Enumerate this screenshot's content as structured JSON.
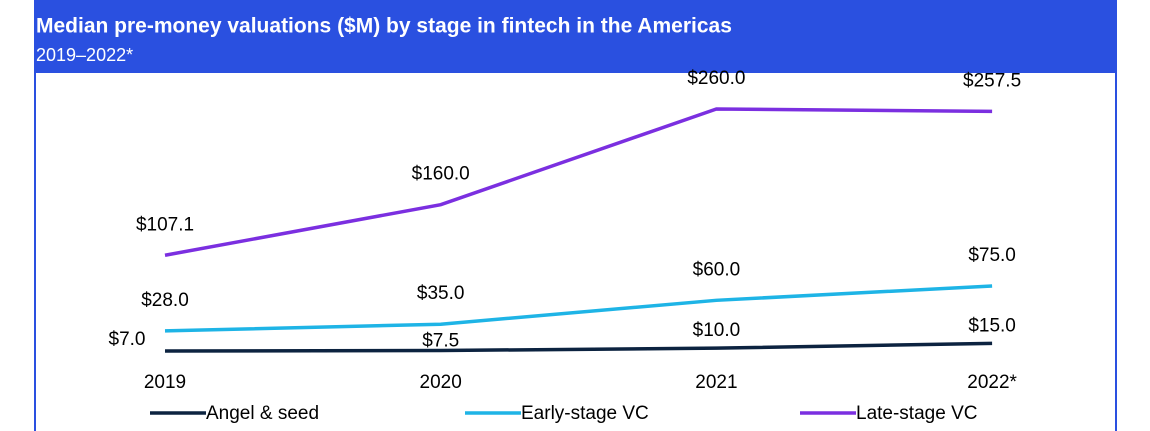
{
  "chart_data": {
    "type": "line",
    "title": "Median pre-money valuations ($M) by stage in fintech in the Americas",
    "subtitle": "2019–2022*",
    "categories": [
      "2019",
      "2020",
      "2021",
      "2022*"
    ],
    "series": [
      {
        "name": "Angel & seed",
        "color": "#0c2340",
        "values": [
          7.0,
          7.5,
          10.0,
          15.0
        ],
        "value_labels": [
          "$7.0",
          "$7.5",
          "$10.0",
          "$15.0"
        ]
      },
      {
        "name": "Early-stage VC",
        "color": "#1eb4e6",
        "values": [
          28.0,
          35.0,
          60.0,
          75.0
        ],
        "value_labels": [
          "$28.0",
          "$35.0",
          "$60.0",
          "$75.0"
        ]
      },
      {
        "name": "Late-stage VC",
        "color": "#7b2fe0",
        "values": [
          107.1,
          160.0,
          260.0,
          257.5
        ],
        "value_labels": [
          "$107.1",
          "$160.0",
          "$260.0",
          "$257.5"
        ]
      }
    ]
  }
}
